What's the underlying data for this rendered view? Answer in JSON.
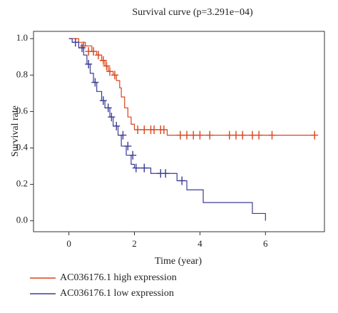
{
  "chart_data": {
    "type": "step",
    "title": "Survival curve (p=3.291e−04)",
    "x_label": "Time (year)",
    "y_label": "Survival rate",
    "xlim": [
      -1.08,
      7.8
    ],
    "ylim": [
      -0.06,
      1.04
    ],
    "xticks": [
      0,
      2,
      4,
      6
    ],
    "yticks": [
      {
        "value": 0,
        "label": "0.0"
      },
      0.2,
      0.4,
      0.6,
      0.8,
      {
        "value": 1,
        "label": "1.0"
      }
    ],
    "legend": "bottom",
    "series": [
      {
        "name": "AC036176.1 high expression",
        "color": "#d9441c",
        "x": [
          0,
          0.3,
          0.5,
          0.7,
          0.85,
          1.0,
          1.1,
          1.2,
          1.35,
          1.45,
          1.55,
          1.6,
          1.7,
          1.8,
          1.9,
          2.0,
          3.0,
          7.5
        ],
        "values": [
          1.0,
          0.98,
          0.96,
          0.93,
          0.91,
          0.88,
          0.85,
          0.82,
          0.8,
          0.77,
          0.73,
          0.68,
          0.62,
          0.57,
          0.53,
          0.5,
          0.47,
          0.47
        ],
        "censor_x": [
          0.45,
          0.6,
          0.75,
          0.9,
          1.05,
          1.15,
          1.25,
          1.4,
          2.1,
          2.3,
          2.5,
          2.6,
          2.8,
          2.9,
          3.4,
          3.6,
          3.8,
          4.0,
          4.3,
          4.9,
          5.1,
          5.3,
          5.6,
          5.8,
          6.2,
          7.5
        ],
        "censor_values": [
          0.96,
          0.93,
          0.93,
          0.91,
          0.88,
          0.85,
          0.82,
          0.8,
          0.5,
          0.5,
          0.5,
          0.5,
          0.5,
          0.5,
          0.47,
          0.47,
          0.47,
          0.47,
          0.47,
          0.47,
          0.47,
          0.47,
          0.47,
          0.47,
          0.47,
          0.47
        ]
      },
      {
        "name": "AC036176.1 low expression",
        "color": "#3b3b96",
        "x": [
          0,
          0.1,
          0.3,
          0.45,
          0.55,
          0.65,
          0.75,
          0.85,
          1.0,
          1.1,
          1.25,
          1.35,
          1.5,
          1.6,
          1.75,
          1.9,
          2.0,
          2.5,
          3.3,
          3.6,
          4.1,
          5.6,
          6.0
        ],
        "values": [
          1.0,
          0.98,
          0.95,
          0.91,
          0.86,
          0.81,
          0.76,
          0.71,
          0.66,
          0.62,
          0.57,
          0.52,
          0.47,
          0.41,
          0.36,
          0.31,
          0.29,
          0.26,
          0.22,
          0.17,
          0.1,
          0.04,
          0.0
        ],
        "censor_x": [
          0.2,
          0.4,
          0.6,
          0.8,
          1.05,
          1.2,
          1.3,
          1.45,
          1.65,
          1.8,
          1.95,
          2.05,
          2.3,
          2.8,
          2.95,
          3.45
        ],
        "censor_values": [
          0.98,
          0.95,
          0.86,
          0.76,
          0.66,
          0.62,
          0.57,
          0.52,
          0.47,
          0.41,
          0.36,
          0.29,
          0.29,
          0.26,
          0.26,
          0.22
        ]
      }
    ]
  }
}
